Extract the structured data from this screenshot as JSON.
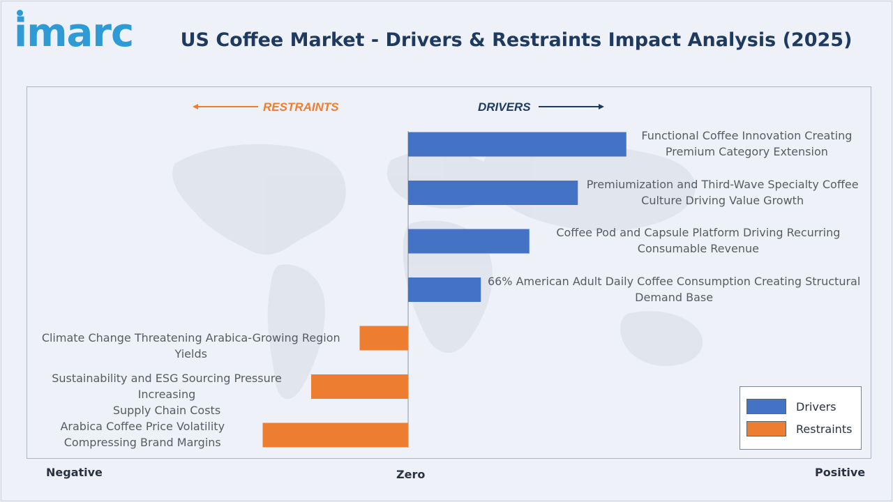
{
  "header": {
    "logo_text": "imarc",
    "title": "US Coffee Market - Drivers & Restraints Impact Analysis (2025)"
  },
  "directions": {
    "restraints": "RESTRAINTS",
    "drivers": "DRIVERS"
  },
  "axis": {
    "negative": "Negative",
    "zero": "Zero",
    "positive": "Positive"
  },
  "legend": {
    "drivers": "Drivers",
    "restraints": "Restraints"
  },
  "colors": {
    "drivers": "#4472c4",
    "restraints": "#ed7d31",
    "title": "#1f3a5f",
    "logo": "#2f9bd6"
  },
  "chart_data": {
    "type": "bar",
    "orientation": "horizontal",
    "title": "US Coffee Market - Drivers & Restraints Impact Analysis (2025)",
    "xlabel": "",
    "ylabel": "",
    "x_scale_labels": [
      "Negative",
      "Zero",
      "Positive"
    ],
    "series": [
      {
        "name": "Drivers",
        "color": "#4472c4"
      },
      {
        "name": "Restraints",
        "color": "#ed7d31"
      }
    ],
    "bars": [
      {
        "label_lines": [
          "Functional Coffee Innovation Creating",
          "Premium Category Extension"
        ],
        "value": 4.5,
        "series": "Drivers"
      },
      {
        "label_lines": [
          "Premiumization and Third-Wave Specialty Coffee",
          "Culture Driving Value Growth"
        ],
        "value": 3.5,
        "series": "Drivers"
      },
      {
        "label_lines": [
          "Coffee Pod and Capsule Platform Driving Recurring",
          "Consumable Revenue"
        ],
        "value": 2.5,
        "series": "Drivers"
      },
      {
        "label_lines": [
          "66% American Adult Daily Coffee Consumption Creating Structural",
          "Demand Base"
        ],
        "value": 1.5,
        "series": "Drivers"
      },
      {
        "label_lines": [
          "Climate Change Threatening Arabica-Growing Region Yields"
        ],
        "value": -1,
        "series": "Restraints"
      },
      {
        "label_lines": [
          "Sustainability and ESG Sourcing Pressure Increasing",
          "Supply Chain Costs"
        ],
        "value": -2,
        "series": "Restraints"
      },
      {
        "label_lines": [
          "Arabica Coffee Price Volatility",
          "Compressing Brand Margins"
        ],
        "value": -3,
        "series": "Restraints"
      }
    ]
  }
}
